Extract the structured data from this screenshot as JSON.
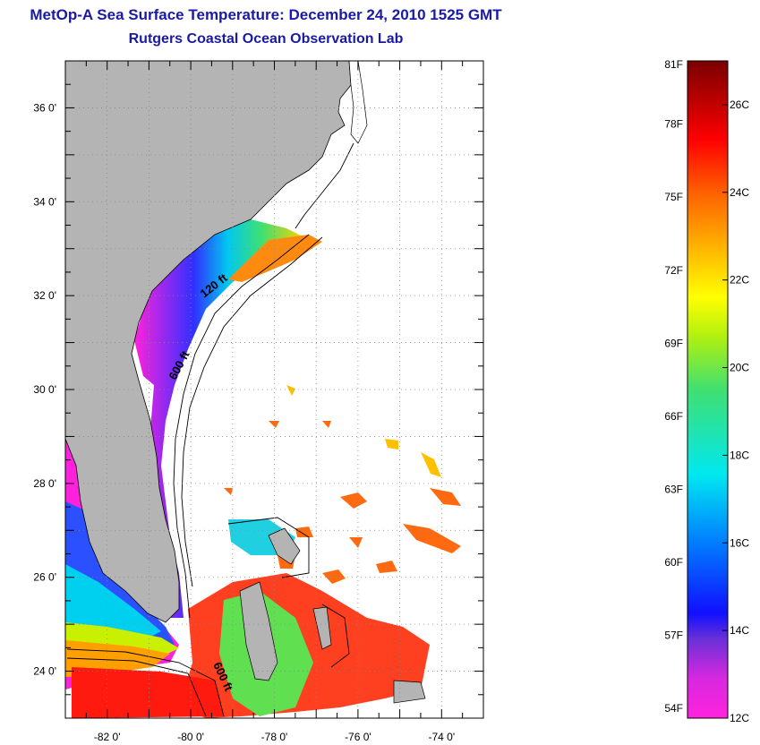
{
  "title": "MetOp-A Sea Surface Temperature:  December 24, 2010 1525 GMT",
  "subtitle": "Rutgers Coastal Ocean Observation Lab",
  "map": {
    "lon_range": [
      -83,
      -73
    ],
    "lat_range": [
      23,
      37
    ],
    "lon_ticks": [
      "-82 0'",
      "-80 0'",
      "-78 0'",
      "-76 0'",
      "-74 0'"
    ],
    "lat_ticks": [
      "36 0'",
      "34 0'",
      "32 0'",
      "30 0'",
      "28 0'",
      "26 0'",
      "24 0'"
    ],
    "grid": "dotted",
    "colors": {
      "land": "#b4b4b4",
      "ocean_nodata": "#ffffff",
      "coastline": "#000000"
    },
    "contour_labels": [
      "120 ft",
      "600 ft",
      "600 ft"
    ]
  },
  "colorbar": {
    "f_labels": [
      "81F",
      "78F",
      "75F",
      "72F",
      "69F",
      "66F",
      "63F",
      "60F",
      "57F",
      "54F"
    ],
    "c_labels": [
      "26C",
      "24C",
      "22C",
      "20C",
      "18C",
      "16C",
      "14C",
      "12C"
    ],
    "min_c": 12,
    "max_c": 27,
    "colors": [
      "#ff22dd",
      "#9b30e0",
      "#1010ff",
      "#0080ff",
      "#00e0f0",
      "#40e070",
      "#c8f000",
      "#ffff00",
      "#ffb000",
      "#ff6000",
      "#ff0000",
      "#b00000",
      "#7a0000"
    ]
  }
}
